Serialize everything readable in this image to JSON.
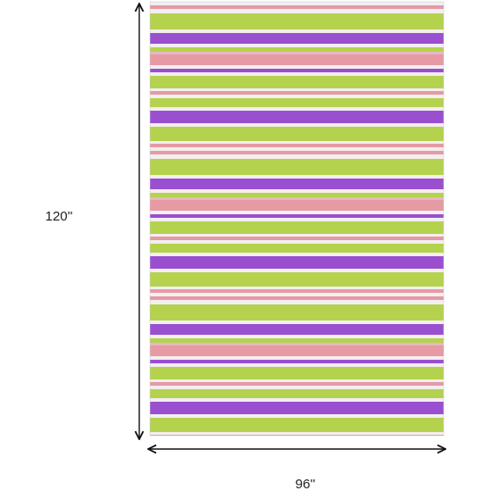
{
  "dimensions": {
    "height_label": "120''",
    "width_label": "96''"
  }
}
